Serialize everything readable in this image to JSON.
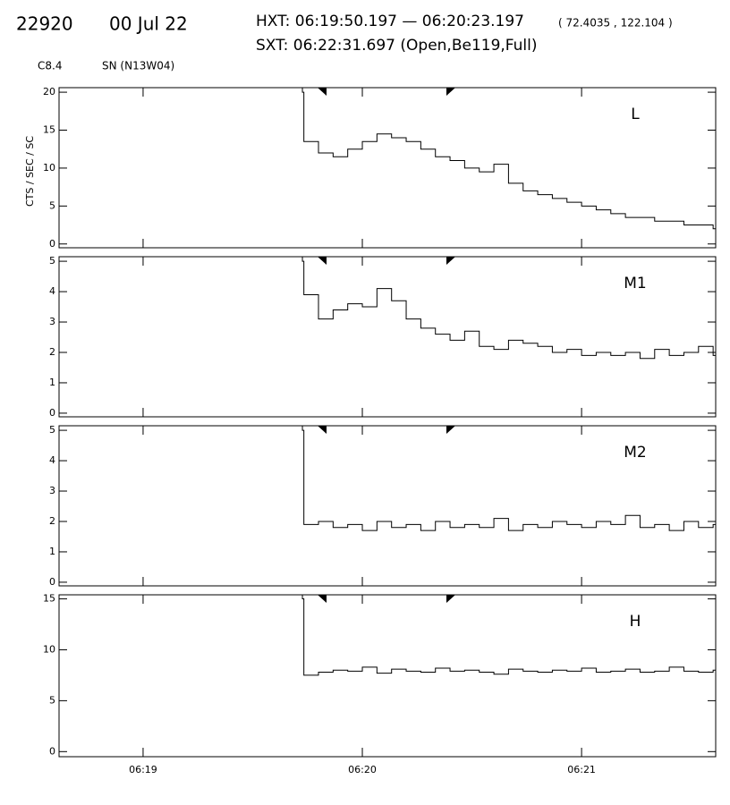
{
  "header": {
    "id": "22920",
    "date": "00 Jul 22",
    "hxt": "HXT: 06:19:50.197 — 06:20:23.197",
    "coords": "( 72.4035 , 122.104 )",
    "sxt": "SXT: 06:22:31.697 (Open,Be119,Full)",
    "class": "C8.4",
    "location": "SN (N13W04)"
  },
  "chart_data": [
    {
      "type": "line",
      "ylabel": "CTS / SEC / SC",
      "x": [
        43.6,
        44,
        48,
        52,
        56,
        60,
        64,
        68,
        72,
        76,
        80,
        84,
        88,
        92,
        96,
        100,
        104,
        108,
        112,
        116,
        120,
        124,
        128,
        132,
        136,
        140,
        144,
        148,
        152,
        156
      ],
      "series": [
        {
          "name": "L",
          "color": "#000000",
          "values": [
            20,
            13.5,
            12,
            11.5,
            12.5,
            13.5,
            14.5,
            14,
            13.5,
            12.5,
            11.5,
            11,
            10,
            9.5,
            10.5,
            8,
            7,
            6.5,
            6,
            5.5,
            5,
            4.5,
            4,
            3.5,
            3.5,
            3,
            3,
            2.5,
            2.5,
            2
          ]
        }
      ],
      "xlim": [
        -23,
        156.7
      ],
      "ylim": [
        -0.5,
        20.6
      ],
      "yticks": [
        0,
        5,
        10,
        15,
        20
      ]
    },
    {
      "type": "line",
      "x": [
        43.6,
        44,
        48,
        52,
        56,
        60,
        64,
        68,
        72,
        76,
        80,
        84,
        88,
        92,
        96,
        100,
        104,
        108,
        112,
        116,
        120,
        124,
        128,
        132,
        136,
        140,
        144,
        148,
        152,
        156
      ],
      "series": [
        {
          "name": "M1",
          "color": "#000000",
          "values": [
            5,
            3.9,
            3.1,
            3.4,
            3.6,
            3.5,
            4.1,
            3.7,
            3.1,
            2.8,
            2.6,
            2.4,
            2.7,
            2.2,
            2.1,
            2.4,
            2.3,
            2.2,
            2.0,
            2.1,
            1.9,
            2.0,
            1.9,
            2.0,
            1.8,
            2.1,
            1.9,
            2.0,
            2.2,
            1.9
          ]
        }
      ],
      "xlim": [
        -23,
        156.7
      ],
      "ylim": [
        -0.12,
        5.15
      ],
      "yticks": [
        0,
        1,
        2,
        3,
        4,
        5
      ]
    },
    {
      "type": "line",
      "x": [
        43.6,
        44,
        48,
        52,
        56,
        60,
        64,
        68,
        72,
        76,
        80,
        84,
        88,
        92,
        96,
        100,
        104,
        108,
        112,
        116,
        120,
        124,
        128,
        132,
        136,
        140,
        144,
        148,
        152,
        156
      ],
      "series": [
        {
          "name": "M2",
          "color": "#000000",
          "values": [
            5,
            1.9,
            2.0,
            1.8,
            1.9,
            1.7,
            2.0,
            1.8,
            1.9,
            1.7,
            2.0,
            1.8,
            1.9,
            1.8,
            2.1,
            1.7,
            1.9,
            1.8,
            2.0,
            1.9,
            1.8,
            2.0,
            1.9,
            2.2,
            1.8,
            1.9,
            1.7,
            2.0,
            1.8,
            1.9
          ]
        }
      ],
      "xlim": [
        -23,
        156.7
      ],
      "ylim": [
        -0.12,
        5.15
      ],
      "yticks": [
        0,
        1,
        2,
        3,
        4,
        5
      ]
    },
    {
      "type": "line",
      "x": [
        43.6,
        44,
        48,
        52,
        56,
        60,
        64,
        68,
        72,
        76,
        80,
        84,
        88,
        92,
        96,
        100,
        104,
        108,
        112,
        116,
        120,
        124,
        128,
        132,
        136,
        140,
        144,
        148,
        152,
        156
      ],
      "series": [
        {
          "name": "H",
          "color": "#000000",
          "values": [
            15,
            7.5,
            7.8,
            8.0,
            7.9,
            8.3,
            7.7,
            8.1,
            7.9,
            7.8,
            8.2,
            7.9,
            8.0,
            7.8,
            7.6,
            8.1,
            7.9,
            7.8,
            8.0,
            7.9,
            8.2,
            7.8,
            7.9,
            8.1,
            7.8,
            7.9,
            8.3,
            7.9,
            7.8,
            8.0
          ]
        }
      ],
      "xlim": [
        -23,
        156.7
      ],
      "ylim": [
        -0.5,
        15.4
      ],
      "yticks": [
        0,
        5,
        10,
        15
      ],
      "xticks": [
        {
          "value": 0,
          "label": "06:19"
        },
        {
          "value": 60,
          "label": "06:20"
        },
        {
          "value": 120,
          "label": "06:21"
        }
      ]
    }
  ]
}
